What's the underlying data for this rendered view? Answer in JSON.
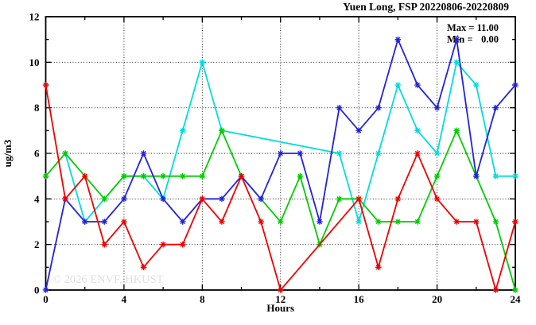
{
  "chart_data": {
    "type": "line",
    "title": "Yuen Long, FSP 20220806-20220809",
    "xlabel": "Hours",
    "ylabel": "ug/m3",
    "xlim": [
      0,
      24
    ],
    "ylim": [
      0,
      12
    ],
    "x_major_ticks": [
      0,
      4,
      8,
      12,
      16,
      20,
      24
    ],
    "x_minor_ticks": [
      2,
      6,
      10,
      14,
      18,
      22
    ],
    "y_major_ticks": [
      0,
      2,
      4,
      6,
      8,
      10,
      12
    ],
    "y_minor_ticks": [
      1,
      3,
      5,
      7,
      9,
      11
    ],
    "grid": true,
    "legend": "none",
    "annotation": {
      "lines": [
        {
          "label": "Max =",
          "value": "11.00"
        },
        {
          "label": "Min =",
          "value": "0.00"
        }
      ]
    },
    "watermark": "© 2026 ENVF, HKUST",
    "frame_color": "#000000",
    "series": [
      {
        "name": "series-cyan",
        "color": "#00dcdc",
        "points": [
          [
            1,
            6
          ],
          [
            2,
            3
          ],
          [
            3,
            4
          ],
          [
            4,
            5
          ],
          [
            5,
            5
          ],
          [
            6,
            4
          ],
          [
            7,
            7
          ],
          [
            8,
            10
          ],
          [
            9,
            7
          ],
          [
            15,
            6
          ],
          [
            16,
            3
          ],
          [
            17,
            6
          ],
          [
            18,
            9
          ],
          [
            19,
            7
          ],
          [
            20,
            6
          ],
          [
            21,
            10
          ],
          [
            22,
            9
          ],
          [
            23,
            5
          ],
          [
            24,
            5
          ]
        ]
      },
      {
        "name": "series-green",
        "color": "#00cc00",
        "points": [
          [
            0,
            5
          ],
          [
            1,
            6
          ],
          [
            2,
            5
          ],
          [
            3,
            4
          ],
          [
            4,
            5
          ],
          [
            5,
            5
          ],
          [
            6,
            5
          ],
          [
            7,
            5
          ],
          [
            8,
            5
          ],
          [
            9,
            7
          ],
          [
            10,
            5
          ],
          [
            11,
            4
          ],
          [
            12,
            3
          ],
          [
            13,
            5
          ],
          [
            14,
            2
          ],
          [
            15,
            4
          ],
          [
            16,
            4
          ],
          [
            17,
            3
          ],
          [
            18,
            3
          ],
          [
            19,
            3
          ],
          [
            20,
            5
          ],
          [
            21,
            7
          ],
          [
            22,
            5
          ],
          [
            23,
            3
          ],
          [
            24,
            0
          ]
        ]
      },
      {
        "name": "series-blue",
        "color": "#2222dd",
        "points": [
          [
            0,
            0
          ],
          [
            1,
            4
          ],
          [
            2,
            3
          ],
          [
            3,
            3
          ],
          [
            4,
            4
          ],
          [
            5,
            6
          ],
          [
            6,
            4
          ],
          [
            7,
            3
          ],
          [
            8,
            4
          ],
          [
            9,
            4
          ],
          [
            10,
            5
          ],
          [
            11,
            4
          ],
          [
            12,
            6
          ],
          [
            13,
            6
          ],
          [
            14,
            3
          ],
          [
            15,
            8
          ],
          [
            16,
            7
          ],
          [
            17,
            8
          ],
          [
            18,
            11
          ],
          [
            19,
            9
          ],
          [
            20,
            8
          ],
          [
            21,
            11
          ],
          [
            22,
            5
          ],
          [
            23,
            8
          ],
          [
            24,
            9
          ]
        ]
      },
      {
        "name": "series-red",
        "color": "#ee0000",
        "points": [
          [
            0,
            9
          ],
          [
            1,
            4
          ],
          [
            2,
            5
          ],
          [
            3,
            2
          ],
          [
            4,
            3
          ],
          [
            5,
            1
          ],
          [
            6,
            2
          ],
          [
            7,
            2
          ],
          [
            8,
            4
          ],
          [
            9,
            3
          ],
          [
            10,
            5
          ],
          [
            11,
            3
          ],
          [
            12,
            0
          ],
          [
            16,
            4
          ],
          [
            17,
            1
          ],
          [
            18,
            4
          ],
          [
            19,
            6
          ],
          [
            20,
            4
          ],
          [
            21,
            3
          ],
          [
            22,
            3
          ],
          [
            23,
            0
          ],
          [
            24,
            3
          ]
        ]
      }
    ]
  }
}
